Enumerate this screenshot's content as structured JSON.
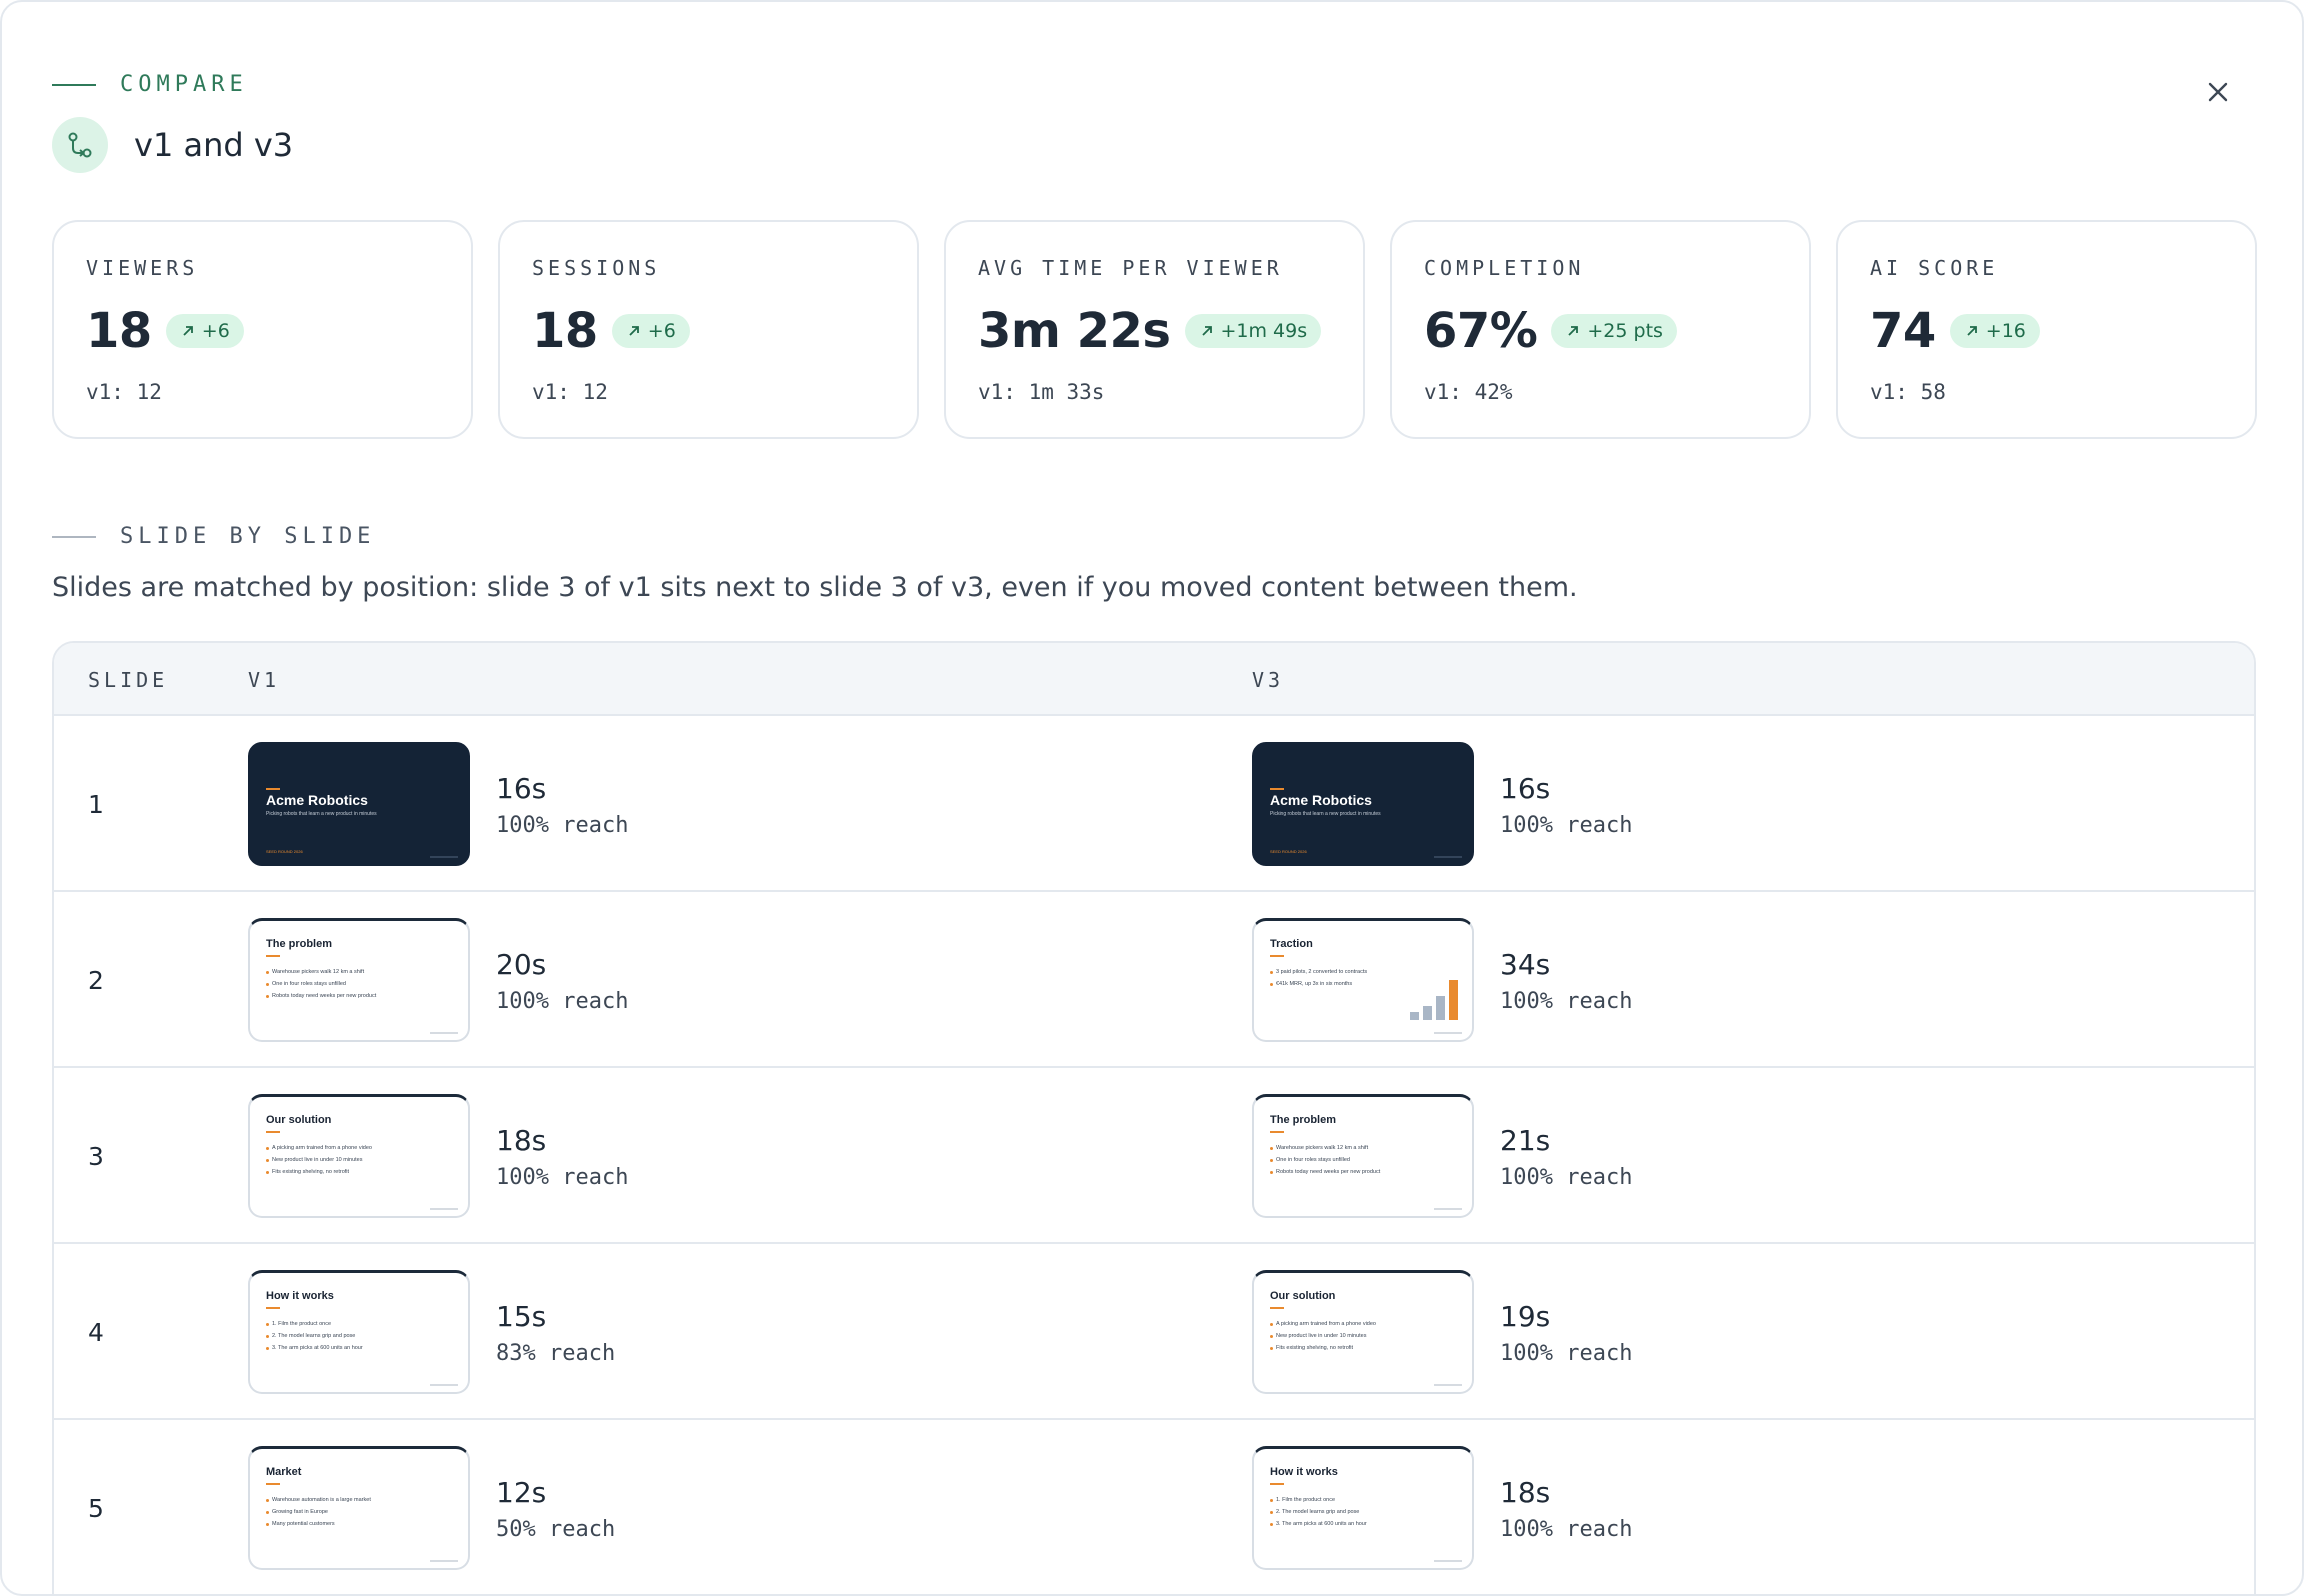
{
  "header": {
    "eyebrow": "COMPARE",
    "title": "v1 and v3",
    "close_icon": "close-icon",
    "title_icon": "compare-icon"
  },
  "stats": [
    {
      "label": "VIEWERS",
      "value": "18",
      "delta": "+6",
      "previous": "v1: 12"
    },
    {
      "label": "SESSIONS",
      "value": "18",
      "delta": "+6",
      "previous": "v1: 12"
    },
    {
      "label": "AVG TIME PER VIEWER",
      "value": "3m 22s",
      "delta": "+1m 49s",
      "previous": "v1: 1m 33s"
    },
    {
      "label": "COMPLETION",
      "value": "67%",
      "delta": "+25 pts",
      "previous": "v1: 42%"
    },
    {
      "label": "AI SCORE",
      "value": "74",
      "delta": "+16",
      "previous": "v1: 58"
    }
  ],
  "slide_section": {
    "eyebrow": "SLIDE BY SLIDE",
    "description": "Slides are matched by position: slide 3 of v1 sits next to slide 3 of v3, even if you moved content between them."
  },
  "table": {
    "columns": {
      "slide": "SLIDE",
      "v1": "V1",
      "v3": "V3"
    },
    "rows": [
      {
        "num": "1",
        "v1": {
          "time": "16s",
          "reach": "100% reach"
        },
        "v3": {
          "time": "16s",
          "reach": "100% reach"
        }
      },
      {
        "num": "2",
        "v1": {
          "time": "20s",
          "reach": "100% reach"
        },
        "v3": {
          "time": "34s",
          "reach": "100% reach"
        }
      },
      {
        "num": "3",
        "v1": {
          "time": "18s",
          "reach": "100% reach"
        },
        "v3": {
          "time": "21s",
          "reach": "100% reach"
        }
      },
      {
        "num": "4",
        "v1": {
          "time": "15s",
          "reach": "83% reach"
        },
        "v3": {
          "time": "19s",
          "reach": "100% reach"
        }
      },
      {
        "num": "5",
        "v1": {
          "time": "12s",
          "reach": "50% reach"
        },
        "v3": {
          "time": "18s",
          "reach": "100% reach"
        }
      }
    ]
  },
  "thumbnails": {
    "title_slide": {
      "title": "Acme Robotics",
      "subtitle": "Picking robots that learn a new product in minutes",
      "tag": "SEED ROUND 2026"
    },
    "problem": {
      "title": "The problem",
      "bullets": [
        "Warehouse pickers walk 12 km a shift",
        "One in four roles stays unfilled",
        "Robots today need weeks per new product"
      ]
    },
    "solution": {
      "title": "Our solution",
      "bullets": [
        "A picking arm trained from a phone video",
        "New product live in under 10 minutes",
        "Fits existing shelving, no retrofit"
      ]
    },
    "how": {
      "title": "How it works",
      "bullets": [
        "1. Film the product once",
        "2. The model learns grip and pose",
        "3. The arm picks at 600 units an hour"
      ]
    },
    "market": {
      "title": "Market",
      "bullets": [
        "Warehouse automation is a large market",
        "Growing fast in Europe",
        "Many potential customers"
      ]
    },
    "traction": {
      "title": "Traction",
      "bullets": [
        "3 paid pilots, 2 converted to contracts",
        "€41k MRR, up 3x in six months"
      ],
      "chart_values": [
        1,
        1.8,
        3,
        5
      ]
    }
  },
  "colors": {
    "accent_green": "#2f7a5a",
    "delta_bg": "#daf5e6",
    "slide_dark": "#142336",
    "slide_orange": "#e98a2e",
    "chart_gray": "#a9b6c6"
  }
}
